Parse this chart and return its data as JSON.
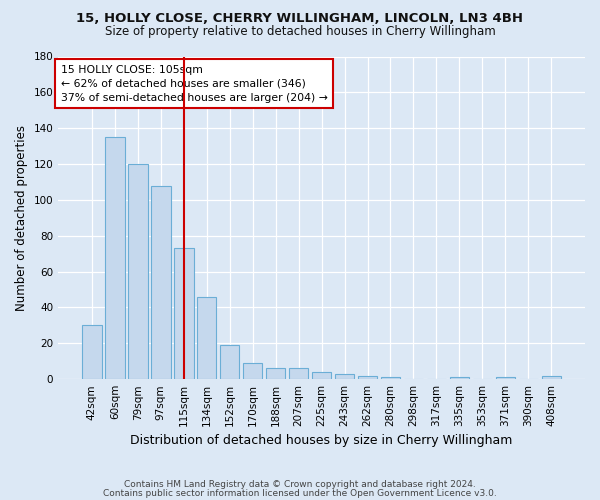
{
  "title1": "15, HOLLY CLOSE, CHERRY WILLINGHAM, LINCOLN, LN3 4BH",
  "title2": "Size of property relative to detached houses in Cherry Willingham",
  "xlabel": "Distribution of detached houses by size in Cherry Willingham",
  "ylabel": "Number of detached properties",
  "footnote1": "Contains HM Land Registry data © Crown copyright and database right 2024.",
  "footnote2": "Contains public sector information licensed under the Open Government Licence v3.0.",
  "categories": [
    "42sqm",
    "60sqm",
    "79sqm",
    "97sqm",
    "115sqm",
    "134sqm",
    "152sqm",
    "170sqm",
    "188sqm",
    "207sqm",
    "225sqm",
    "243sqm",
    "262sqm",
    "280sqm",
    "298sqm",
    "317sqm",
    "335sqm",
    "353sqm",
    "371sqm",
    "390sqm",
    "408sqm"
  ],
  "values": [
    30,
    135,
    120,
    108,
    73,
    46,
    19,
    9,
    6,
    6,
    4,
    3,
    2,
    1,
    0,
    0,
    1,
    0,
    1,
    0,
    2
  ],
  "bar_color": "#c5d8ed",
  "bar_edge_color": "#6baed6",
  "vline_x": 4,
  "vline_color": "#cc0000",
  "annotation_line1": "15 HOLLY CLOSE: 105sqm",
  "annotation_line2": "← 62% of detached houses are smaller (346)",
  "annotation_line3": "37% of semi-detached houses are larger (204) →",
  "annotation_box_color": "#ffffff",
  "annotation_box_edge": "#cc0000",
  "ylim": [
    0,
    180
  ],
  "yticks": [
    0,
    20,
    40,
    60,
    80,
    100,
    120,
    140,
    160,
    180
  ],
  "bg_color": "#dce8f5",
  "plot_bg_color": "#dce8f5",
  "grid_color": "#ffffff",
  "title1_fontsize": 9.5,
  "title2_fontsize": 8.5,
  "xlabel_fontsize": 9,
  "ylabel_fontsize": 8.5,
  "tick_fontsize": 7.5,
  "footnote_fontsize": 6.5
}
